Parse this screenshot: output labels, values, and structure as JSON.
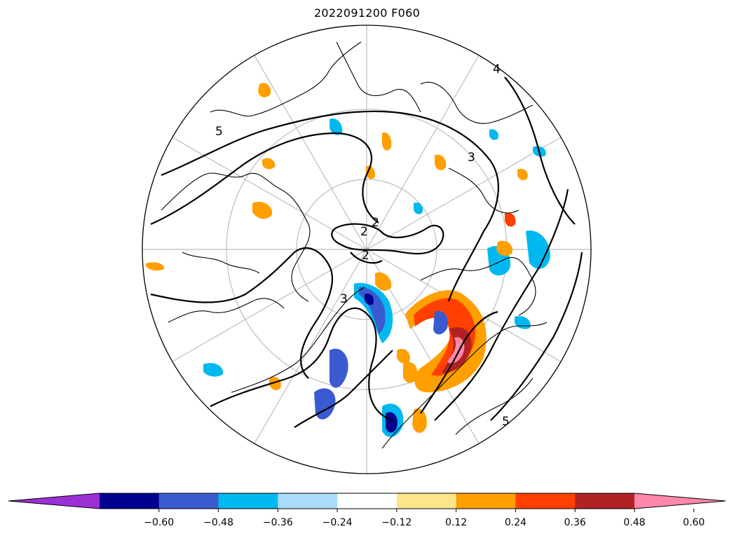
{
  "title": "2022091200 F060",
  "map": {
    "projection": "north-polar-stereographic",
    "contour_labels": [
      "2",
      "2",
      "2",
      "5",
      "5",
      "3",
      "3",
      "4"
    ]
  },
  "colorbar": {
    "extend": "both",
    "bins": [
      {
        "color": "#9b30d4"
      },
      {
        "color": "#000090"
      },
      {
        "color": "#3a5bd0"
      },
      {
        "color": "#00b8f0"
      },
      {
        "color": "#a8dcf8"
      },
      {
        "color": "#ffffff"
      },
      {
        "color": "#fde68a"
      },
      {
        "color": "#ff9f00"
      },
      {
        "color": "#ff4000"
      },
      {
        "color": "#b22222"
      },
      {
        "color": "#ff88aa"
      }
    ],
    "tick_labels": [
      "−0.60",
      "−0.48",
      "−0.36",
      "−0.24",
      "−0.12",
      "0.12",
      "0.24",
      "0.36",
      "0.48",
      "0.60"
    ]
  }
}
